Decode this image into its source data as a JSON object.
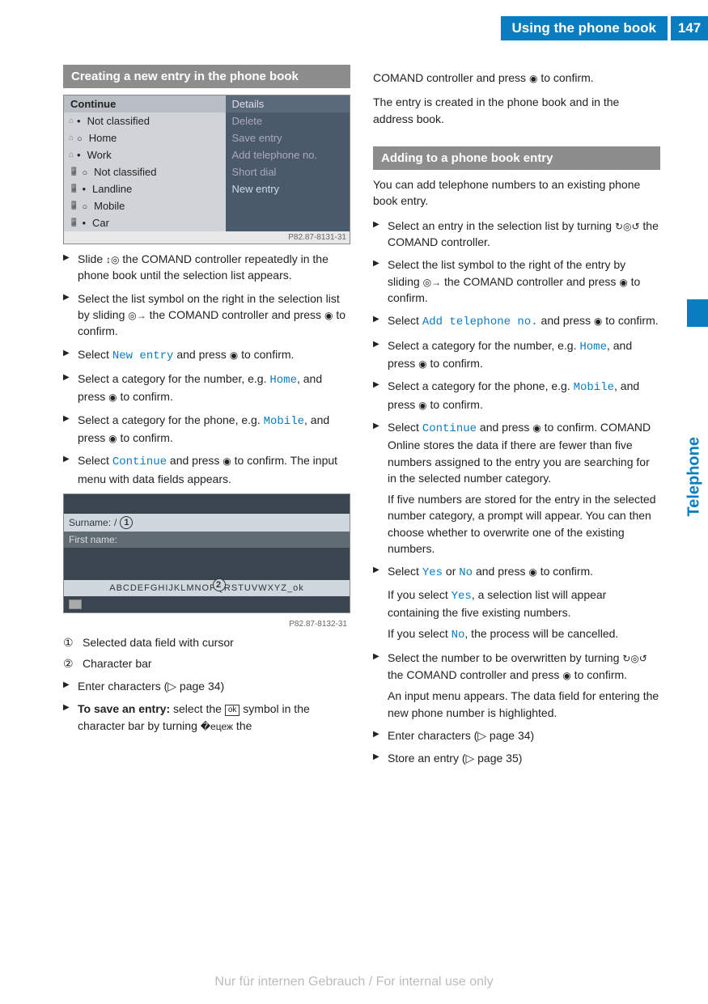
{
  "header": {
    "title": "Using the phone book",
    "page_number": "147"
  },
  "side_label": "Telephone",
  "colors": {
    "brand": "#0a7cc0",
    "section_head": "#8d8d8d",
    "ss_dark": "#4a5a6a"
  },
  "left": {
    "section_title": "Creating a new entry in the phone book",
    "screenshot1": {
      "id": "P82.87-8131-31",
      "left_header": "Continue",
      "left_items": [
        "Not classified",
        "Home",
        "Work",
        "Not classified",
        "Landline",
        "Mobile",
        "Car"
      ],
      "right_items": [
        "Details",
        "Delete",
        "Save entry",
        "Add telephone no.",
        "Short dial",
        "New entry"
      ],
      "right_selected_index": 5
    },
    "steps1": [
      {
        "text_parts": [
          "Slide ",
          {
            "icon": "↕◎"
          },
          " the COMAND controller repeatedly in the phone book until the selection list appears."
        ]
      },
      {
        "text_parts": [
          "Select the list symbol on the right in the selection list by sliding ",
          {
            "icon": "◎→"
          },
          " the COMAND controller and press ",
          {
            "icon": "◉"
          },
          " to confirm."
        ]
      },
      {
        "text_parts": [
          "Select ",
          {
            "menu": "New entry"
          },
          " and press ",
          {
            "icon": "◉"
          },
          " to confirm."
        ]
      },
      {
        "text_parts": [
          "Select a category for the number, e.g. ",
          {
            "menu": "Home"
          },
          ", and press ",
          {
            "icon": "◉"
          },
          " to confirm."
        ]
      },
      {
        "text_parts": [
          "Select a category for the phone, e.g. ",
          {
            "menu": "Mobile"
          },
          ", and press ",
          {
            "icon": "◉"
          },
          " to confirm."
        ]
      },
      {
        "text_parts": [
          "Select ",
          {
            "menu": "Continue"
          },
          " and press ",
          {
            "icon": "◉"
          },
          " to confirm. The input menu with data fields appears."
        ]
      }
    ],
    "screenshot2": {
      "id": "P82.87-8132-31",
      "field1_label": "Surname:",
      "field2_label": "First name:",
      "charbar": "ABCDEFGHIJKLMNOPQRSTUVWXYZ_ok",
      "marker1": "1",
      "marker2": "2"
    },
    "legend": [
      {
        "num": "①",
        "text": "Selected data field with cursor"
      },
      {
        "num": "②",
        "text": "Character bar"
      }
    ],
    "steps2": [
      {
        "text_parts": [
          "Enter characters (▷ page 34)"
        ]
      },
      {
        "text_parts": [
          {
            "bold": "To save an entry:"
          },
          " select the ",
          {
            "okbox": "ok"
          },
          " symbol in the character bar by turning ",
          {
            "icon": "�ецеж"
          },
          " the"
        ]
      }
    ]
  },
  "right": {
    "continuation": [
      {
        "text_parts": [
          "COMAND controller and press ",
          {
            "icon": "◉"
          },
          " to confirm."
        ]
      },
      {
        "plain": "The entry is created in the phone book and in the address book."
      }
    ],
    "section_title": "Adding to a phone book entry",
    "intro": "You can add telephone numbers to an existing phone book entry.",
    "steps": [
      {
        "text_parts": [
          "Select an entry in the selection list by turning ",
          {
            "icon": "↻◎↺"
          },
          " the COMAND controller."
        ]
      },
      {
        "text_parts": [
          "Select the list symbol to the right of the entry by sliding ",
          {
            "icon": "◎→"
          },
          " the COMAND controller and press ",
          {
            "icon": "◉"
          },
          " to confirm."
        ]
      },
      {
        "text_parts": [
          "Select ",
          {
            "menu": "Add telephone no."
          },
          " and press ",
          {
            "icon": "◉"
          },
          " to confirm."
        ]
      },
      {
        "text_parts": [
          "Select a category for the number, e.g. ",
          {
            "menu": "Home"
          },
          ", and press ",
          {
            "icon": "◉"
          },
          " to confirm."
        ]
      },
      {
        "text_parts": [
          "Select a category for the phone, e.g. ",
          {
            "menu": "Mobile"
          },
          ", and press ",
          {
            "icon": "◉"
          },
          " to confirm."
        ]
      },
      {
        "text_parts": [
          "Select ",
          {
            "menu": "Continue"
          },
          " and press ",
          {
            "icon": "◉"
          },
          " to confirm. COMAND Online stores the data if there are fewer than five numbers assigned to the entry you are searching for in the selected number category."
        ],
        "extra": "If five numbers are stored for the entry in the selected number category, a prompt will appear. You can then choose whether to overwrite one of the existing numbers."
      },
      {
        "text_parts": [
          "Select ",
          {
            "menu": "Yes"
          },
          " or ",
          {
            "menu": "No"
          },
          " and press ",
          {
            "icon": "◉"
          },
          " to confirm."
        ],
        "extra": "If you select Yes, a selection list will appear containing the five existing numbers.",
        "extra2_parts": [
          "If you select ",
          {
            "menu": "No"
          },
          ", the process will be cancelled."
        ],
        "extra_pre_parts": [
          "If you select ",
          {
            "menu": "Yes"
          },
          ", a selection list will appear containing the five existing numbers."
        ]
      },
      {
        "text_parts": [
          "Select the number to be overwritten by turning ",
          {
            "icon": "↻◎↺"
          },
          " the COMAND controller and press ",
          {
            "icon": "◉"
          },
          " to confirm."
        ],
        "extra": "An input menu appears. The data field for entering the new phone number is highlighted."
      },
      {
        "text_parts": [
          "Enter characters (▷ page 34)"
        ]
      },
      {
        "text_parts": [
          "Store an entry (▷ page 35)"
        ]
      }
    ]
  },
  "watermark": "Nur für internen Gebrauch / For internal use only"
}
